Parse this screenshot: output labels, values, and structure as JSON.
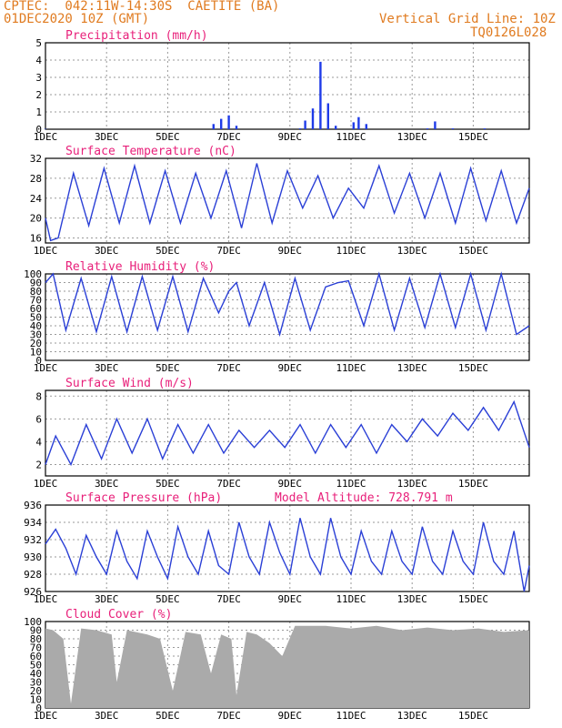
{
  "header": {
    "station": "CPTEC:  042:11W-14:30S  CAETITE (BA)",
    "datetime": "01DEC2020 10Z (GMT)",
    "grid_note": "Vertical Grid Line: 10Z",
    "code": "TQ0126L028"
  },
  "x_labels": [
    "1DEC",
    "3DEC",
    "5DEC",
    "7DEC",
    "9DEC",
    "11DEC",
    "13DEC",
    "15DEC"
  ],
  "colors": {
    "line": "#2a3fd6",
    "bar": "#1f3be8",
    "cloud": "#aaaaaa",
    "title": "#e8207a",
    "header": "#e07b20"
  },
  "chart_data": [
    {
      "type": "bar",
      "title": "Precipitation (mm/h)",
      "ylim": [
        0,
        5
      ],
      "yticks": [
        0,
        1,
        2,
        3,
        4,
        5
      ],
      "x_hours": [
        0,
        132,
        138,
        144,
        150,
        200,
        204,
        210,
        216,
        222,
        228,
        242,
        246,
        252,
        300,
        306,
        320,
        345
      ],
      "values": [
        0.02,
        0.3,
        0.6,
        0.8,
        0.2,
        0.05,
        0.5,
        1.2,
        3.9,
        1.5,
        0.2,
        0.4,
        0.7,
        0.3,
        0.05,
        0.45,
        0.05,
        0.05
      ]
    },
    {
      "type": "line",
      "title": "Surface Temperature (nC)",
      "ylim": [
        15,
        32
      ],
      "yticks": [
        16,
        20,
        24,
        28,
        32
      ],
      "x_hours": [
        0,
        4,
        10,
        22,
        34,
        46,
        58,
        70,
        82,
        94,
        106,
        118,
        130,
        142,
        154,
        166,
        178,
        190,
        202,
        214,
        226,
        238,
        250,
        262,
        274,
        286,
        298,
        310,
        322,
        334,
        346,
        358,
        370,
        380
      ],
      "values": [
        20,
        15.5,
        16,
        29,
        18.5,
        30,
        19,
        30.5,
        19,
        29.5,
        19,
        29,
        20,
        29.5,
        18,
        31,
        19,
        29.5,
        22,
        28.5,
        20,
        26,
        22,
        30.5,
        21,
        29,
        20,
        29,
        19,
        30,
        19.5,
        29.5,
        19,
        26
      ]
    },
    {
      "type": "line",
      "title": "Relative Humidity (%)",
      "ylim": [
        0,
        100
      ],
      "yticks": [
        0,
        10,
        20,
        30,
        40,
        50,
        60,
        70,
        80,
        90,
        100
      ],
      "x_hours": [
        0,
        6,
        16,
        28,
        40,
        52,
        64,
        76,
        88,
        100,
        112,
        124,
        136,
        144,
        150,
        160,
        172,
        184,
        196,
        208,
        220,
        230,
        238,
        250,
        262,
        274,
        286,
        298,
        310,
        322,
        334,
        346,
        358,
        370,
        380
      ],
      "values": [
        90,
        100,
        35,
        95,
        33,
        97,
        33,
        97,
        35,
        97,
        33,
        95,
        55,
        80,
        90,
        40,
        90,
        30,
        95,
        35,
        85,
        90,
        92,
        40,
        100,
        35,
        95,
        38,
        100,
        38,
        100,
        35,
        100,
        30,
        40
      ]
    },
    {
      "type": "line",
      "title": "Surface Wind (m/s)",
      "ylim": [
        1,
        8.5
      ],
      "yticks": [
        2,
        4,
        6,
        8
      ],
      "x_hours": [
        0,
        8,
        20,
        32,
        44,
        56,
        68,
        80,
        92,
        104,
        116,
        128,
        140,
        152,
        164,
        176,
        188,
        200,
        212,
        224,
        236,
        248,
        260,
        272,
        284,
        296,
        308,
        320,
        332,
        344,
        356,
        368,
        380
      ],
      "values": [
        2,
        4.5,
        2,
        5.5,
        2.5,
        6,
        3,
        6,
        2.5,
        5.5,
        3,
        5.5,
        3,
        5,
        3.5,
        5,
        3.5,
        5.5,
        3,
        5.5,
        3.5,
        5.5,
        3,
        5.5,
        4,
        6,
        4.5,
        6.5,
        5,
        7,
        5,
        7.5,
        3.5
      ]
    },
    {
      "type": "line",
      "title": "Surface Pressure (hPa)",
      "annotation": "Model Altitude: 728.791 m",
      "ylim": [
        926,
        936
      ],
      "yticks": [
        926,
        928,
        930,
        932,
        934,
        936
      ],
      "x_hours": [
        0,
        8,
        16,
        24,
        32,
        40,
        48,
        56,
        64,
        72,
        80,
        88,
        96,
        104,
        112,
        120,
        128,
        136,
        144,
        152,
        160,
        168,
        176,
        184,
        192,
        200,
        208,
        216,
        224,
        232,
        240,
        248,
        256,
        264,
        272,
        280,
        288,
        296,
        304,
        312,
        320,
        328,
        336,
        344,
        352,
        360,
        368,
        376,
        380
      ],
      "values": [
        931.5,
        933.2,
        931,
        928,
        932.5,
        930,
        928,
        933,
        929.5,
        927.5,
        933,
        930,
        927.5,
        933.5,
        930,
        928,
        933,
        929,
        928,
        934,
        930,
        928,
        934,
        930.5,
        928,
        934.5,
        930,
        928,
        934.5,
        930,
        928,
        933,
        929.5,
        928,
        933,
        929.5,
        928,
        933.5,
        929.5,
        928,
        933,
        929.5,
        928,
        934,
        929.5,
        928,
        933,
        926,
        929
      ]
    },
    {
      "type": "area",
      "title": "Cloud Cover (%)",
      "ylim": [
        0,
        100
      ],
      "yticks": [
        0,
        10,
        20,
        30,
        40,
        50,
        60,
        70,
        80,
        90,
        100
      ],
      "x_hours": [
        0,
        6,
        14,
        20,
        28,
        40,
        52,
        56,
        64,
        80,
        90,
        100,
        110,
        122,
        130,
        138,
        146,
        150,
        158,
        166,
        176,
        186,
        196,
        204,
        220,
        240,
        260,
        280,
        300,
        320,
        340,
        360,
        380
      ],
      "values": [
        92,
        90,
        80,
        5,
        92,
        90,
        85,
        30,
        90,
        85,
        80,
        20,
        88,
        85,
        40,
        85,
        80,
        15,
        88,
        85,
        75,
        60,
        95,
        95,
        95,
        92,
        95,
        90,
        93,
        90,
        92,
        88,
        90
      ]
    }
  ]
}
